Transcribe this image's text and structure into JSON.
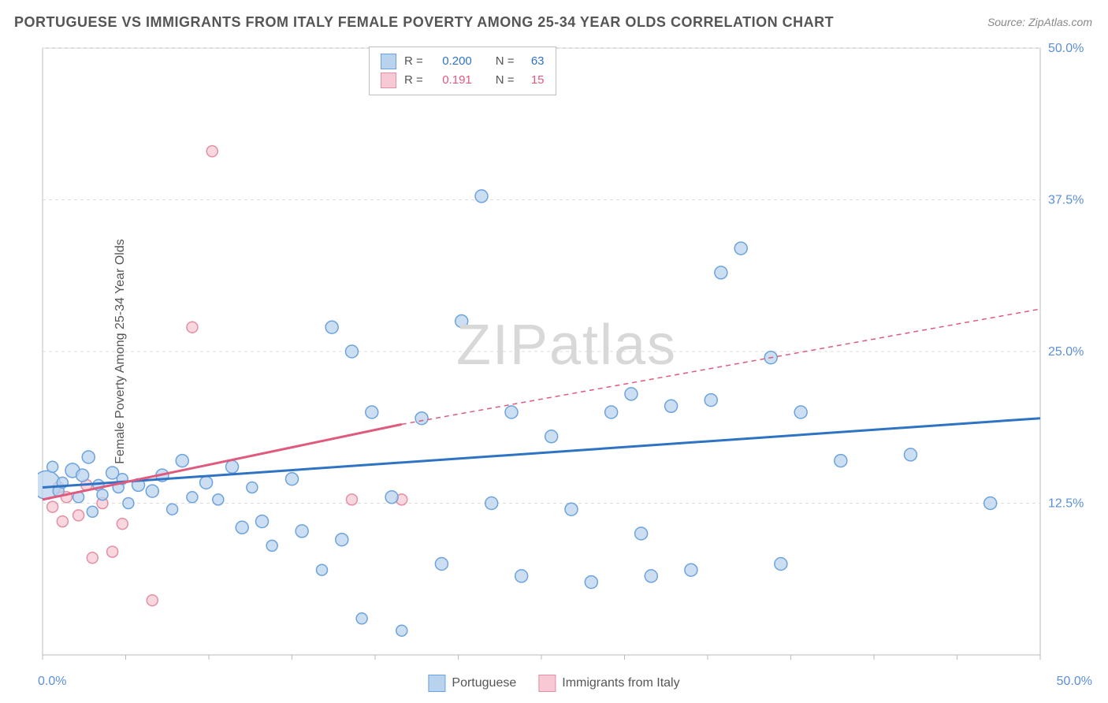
{
  "title": "PORTUGUESE VS IMMIGRANTS FROM ITALY FEMALE POVERTY AMONG 25-34 YEAR OLDS CORRELATION CHART",
  "source": "Source: ZipAtlas.com",
  "ylabel": "Female Poverty Among 25-34 Year Olds",
  "watermark_prefix": "ZIP",
  "watermark_suffix": "atlas",
  "chart": {
    "type": "scatter",
    "xlim": [
      0,
      50
    ],
    "ylim": [
      0,
      50
    ],
    "y_ticks": [
      12.5,
      25.0,
      37.5,
      50.0
    ],
    "y_tick_labels": [
      "12.5%",
      "25.0%",
      "37.5%",
      "50.0%"
    ],
    "x_min_label": "0.0%",
    "x_max_label": "50.0%",
    "background_color": "#ffffff",
    "grid_color": "#dddddd",
    "axis_color": "#bbbbbb",
    "tick_label_color": "#5b8fd6",
    "series": [
      {
        "name": "Portuguese",
        "name_key": "legend_series1",
        "fill": "#b9d3ee",
        "stroke": "#6da3dd",
        "line_color": "#2f74c4",
        "r_value": "0.200",
        "n_value": "63",
        "trend": {
          "x1": 0,
          "y1": 13.8,
          "x2": 50,
          "y2": 19.5
        },
        "points": [
          {
            "x": 0.2,
            "y": 14.0,
            "r": 18
          },
          {
            "x": 0.5,
            "y": 15.5,
            "r": 7
          },
          {
            "x": 0.8,
            "y": 13.5,
            "r": 7
          },
          {
            "x": 1.0,
            "y": 14.2,
            "r": 7
          },
          {
            "x": 1.5,
            "y": 15.2,
            "r": 9
          },
          {
            "x": 1.8,
            "y": 13.0,
            "r": 7
          },
          {
            "x": 2.0,
            "y": 14.8,
            "r": 8
          },
          {
            "x": 2.3,
            "y": 16.3,
            "r": 8
          },
          {
            "x": 2.5,
            "y": 11.8,
            "r": 7
          },
          {
            "x": 2.8,
            "y": 14.0,
            "r": 7
          },
          {
            "x": 3.0,
            "y": 13.2,
            "r": 7
          },
          {
            "x": 3.5,
            "y": 15.0,
            "r": 8
          },
          {
            "x": 3.8,
            "y": 13.8,
            "r": 7
          },
          {
            "x": 4.0,
            "y": 14.5,
            "r": 7
          },
          {
            "x": 4.3,
            "y": 12.5,
            "r": 7
          },
          {
            "x": 4.8,
            "y": 14.0,
            "r": 8
          },
          {
            "x": 5.5,
            "y": 13.5,
            "r": 8
          },
          {
            "x": 6.0,
            "y": 14.8,
            "r": 8
          },
          {
            "x": 6.5,
            "y": 12.0,
            "r": 7
          },
          {
            "x": 7.0,
            "y": 16.0,
            "r": 8
          },
          {
            "x": 7.5,
            "y": 13.0,
            "r": 7
          },
          {
            "x": 8.2,
            "y": 14.2,
            "r": 8
          },
          {
            "x": 8.8,
            "y": 12.8,
            "r": 7
          },
          {
            "x": 9.5,
            "y": 15.5,
            "r": 8
          },
          {
            "x": 10.0,
            "y": 10.5,
            "r": 8
          },
          {
            "x": 10.5,
            "y": 13.8,
            "r": 7
          },
          {
            "x": 11.0,
            "y": 11.0,
            "r": 8
          },
          {
            "x": 11.5,
            "y": 9.0,
            "r": 7
          },
          {
            "x": 12.5,
            "y": 14.5,
            "r": 8
          },
          {
            "x": 13.0,
            "y": 10.2,
            "r": 8
          },
          {
            "x": 14.0,
            "y": 7.0,
            "r": 7
          },
          {
            "x": 14.5,
            "y": 27.0,
            "r": 8
          },
          {
            "x": 15.0,
            "y": 9.5,
            "r": 8
          },
          {
            "x": 15.5,
            "y": 25.0,
            "r": 8
          },
          {
            "x": 16.0,
            "y": 3.0,
            "r": 7
          },
          {
            "x": 16.5,
            "y": 20.0,
            "r": 8
          },
          {
            "x": 17.5,
            "y": 13.0,
            "r": 8
          },
          {
            "x": 18.0,
            "y": 2.0,
            "r": 7
          },
          {
            "x": 19.0,
            "y": 19.5,
            "r": 8
          },
          {
            "x": 20.0,
            "y": 7.5,
            "r": 8
          },
          {
            "x": 21.0,
            "y": 27.5,
            "r": 8
          },
          {
            "x": 22.0,
            "y": 37.8,
            "r": 8
          },
          {
            "x": 22.5,
            "y": 12.5,
            "r": 8
          },
          {
            "x": 23.5,
            "y": 20.0,
            "r": 8
          },
          {
            "x": 24.0,
            "y": 6.5,
            "r": 8
          },
          {
            "x": 25.5,
            "y": 18.0,
            "r": 8
          },
          {
            "x": 26.5,
            "y": 12.0,
            "r": 8
          },
          {
            "x": 27.5,
            "y": 6.0,
            "r": 8
          },
          {
            "x": 28.5,
            "y": 20.0,
            "r": 8
          },
          {
            "x": 29.5,
            "y": 21.5,
            "r": 8
          },
          {
            "x": 30.0,
            "y": 10.0,
            "r": 8
          },
          {
            "x": 30.5,
            "y": 6.5,
            "r": 8
          },
          {
            "x": 31.5,
            "y": 20.5,
            "r": 8
          },
          {
            "x": 32.5,
            "y": 7.0,
            "r": 8
          },
          {
            "x": 33.5,
            "y": 21.0,
            "r": 8
          },
          {
            "x": 34.0,
            "y": 31.5,
            "r": 8
          },
          {
            "x": 35.0,
            "y": 33.5,
            "r": 8
          },
          {
            "x": 36.5,
            "y": 24.5,
            "r": 8
          },
          {
            "x": 37.0,
            "y": 7.5,
            "r": 8
          },
          {
            "x": 38.0,
            "y": 20.0,
            "r": 8
          },
          {
            "x": 40.0,
            "y": 16.0,
            "r": 8
          },
          {
            "x": 43.5,
            "y": 16.5,
            "r": 8
          },
          {
            "x": 47.5,
            "y": 12.5,
            "r": 8
          }
        ]
      },
      {
        "name": "Immigrants from Italy",
        "name_key": "legend_series2",
        "fill": "#f6c9d4",
        "stroke": "#e38fa6",
        "line_color": "#e05a7d",
        "r_value": "0.191",
        "n_value": "15",
        "trend_solid": {
          "x1": 0,
          "y1": 12.8,
          "x2": 18,
          "y2": 19.0
        },
        "trend_dashed": {
          "x1": 18,
          "y1": 19.0,
          "x2": 50,
          "y2": 28.5
        },
        "points": [
          {
            "x": 0.5,
            "y": 12.2,
            "r": 7
          },
          {
            "x": 0.8,
            "y": 13.8,
            "r": 7
          },
          {
            "x": 1.0,
            "y": 11.0,
            "r": 7
          },
          {
            "x": 1.2,
            "y": 13.0,
            "r": 7
          },
          {
            "x": 1.8,
            "y": 11.5,
            "r": 7
          },
          {
            "x": 2.2,
            "y": 14.0,
            "r": 7
          },
          {
            "x": 2.5,
            "y": 8.0,
            "r": 7
          },
          {
            "x": 3.0,
            "y": 12.5,
            "r": 7
          },
          {
            "x": 3.5,
            "y": 8.5,
            "r": 7
          },
          {
            "x": 4.0,
            "y": 10.8,
            "r": 7
          },
          {
            "x": 5.5,
            "y": 4.5,
            "r": 7
          },
          {
            "x": 7.5,
            "y": 27.0,
            "r": 7
          },
          {
            "x": 8.5,
            "y": 41.5,
            "r": 7
          },
          {
            "x": 15.5,
            "y": 12.8,
            "r": 7
          },
          {
            "x": 18.0,
            "y": 12.8,
            "r": 7
          }
        ]
      }
    ]
  },
  "legend_series1": "Portuguese",
  "legend_series2": "Immigrants from Italy",
  "legend_top": {
    "r_label": "R =",
    "n_label": "N ="
  }
}
